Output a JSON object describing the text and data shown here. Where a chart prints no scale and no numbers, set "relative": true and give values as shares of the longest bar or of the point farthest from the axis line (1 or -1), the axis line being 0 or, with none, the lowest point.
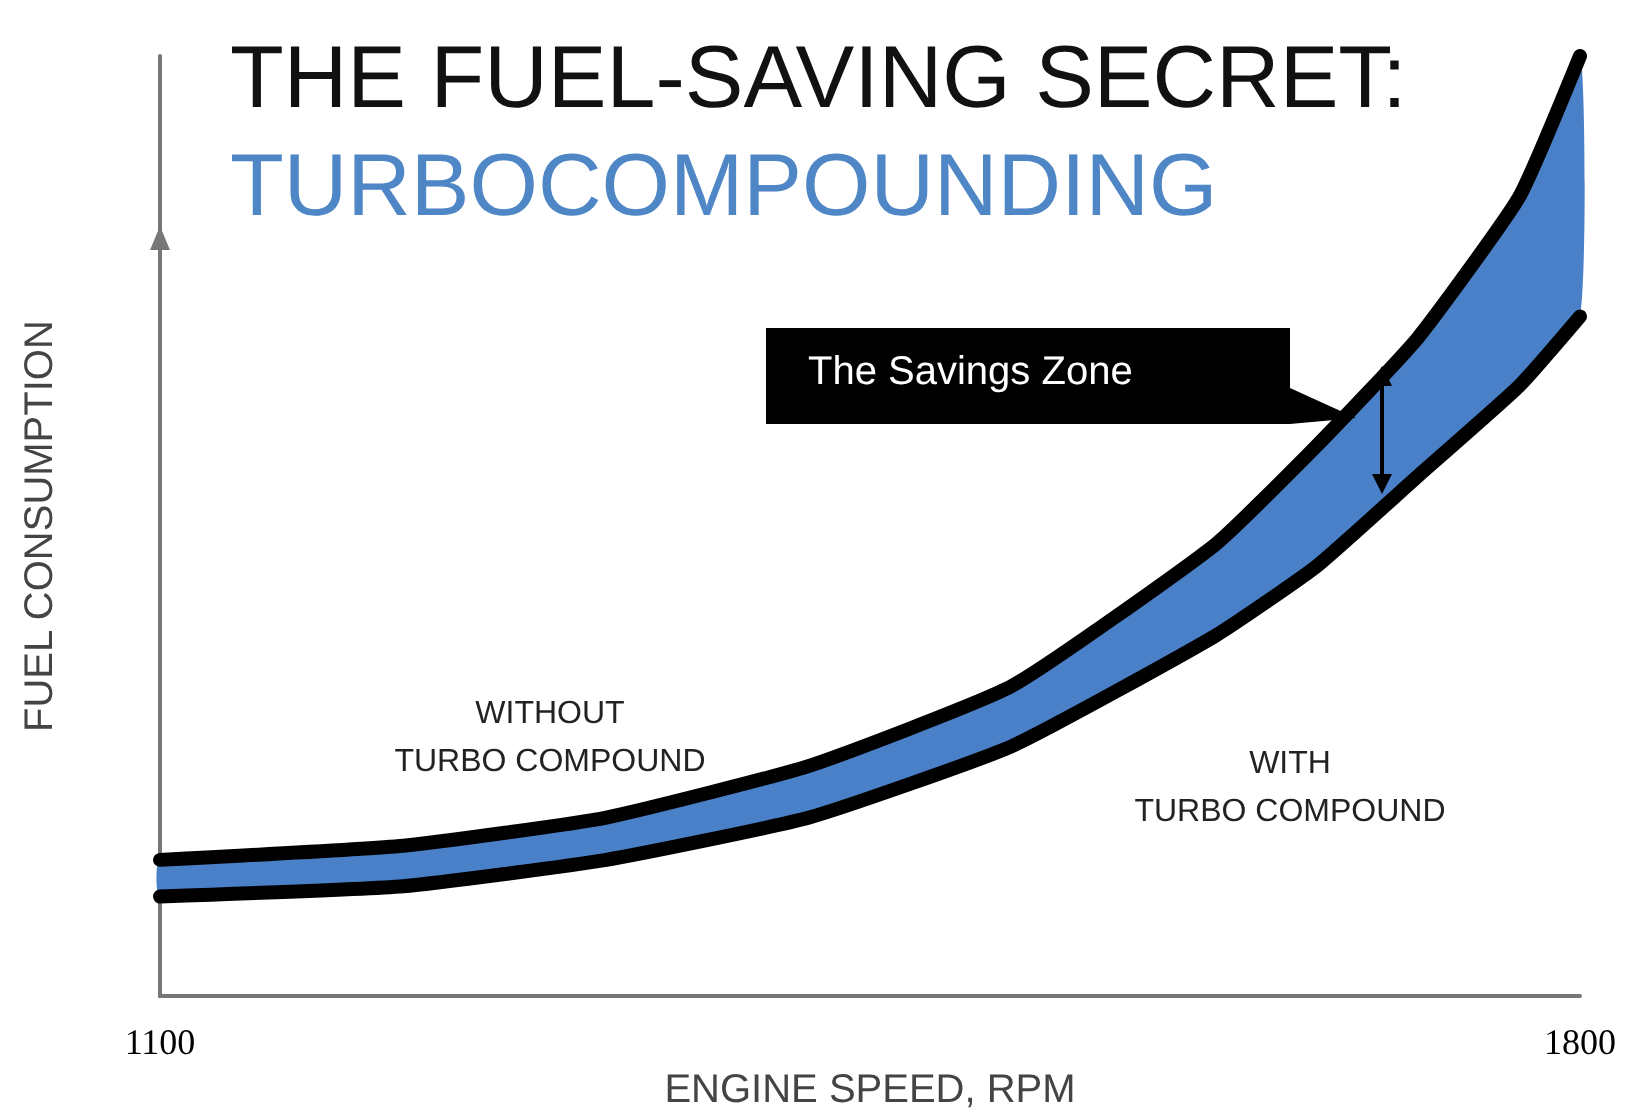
{
  "chart_data": {
    "type": "line",
    "title": "THE FUEL-SAVING SECRET:",
    "subtitle": "TURBOCOMPOUNDING",
    "xlabel": "ENGINE SPEED, RPM",
    "ylabel": "FUEL CONSUMPTION",
    "relative": true,
    "x": [
      1100,
      1220,
      1320,
      1420,
      1520,
      1620,
      1670,
      1720,
      1770,
      1800
    ],
    "xlim": [
      1100,
      1800
    ],
    "xticks": [
      1100,
      1800
    ],
    "tick_labels": "x",
    "grid": false,
    "legend": false,
    "marker": "none",
    "line_style": "solid",
    "series": [
      {
        "name": "WITHOUT\nTURBO COMPOUND",
        "color": "#000000",
        "values": [
          0.145,
          0.16,
          0.19,
          0.245,
          0.33,
          0.48,
          0.585,
          0.7,
          0.85,
          1
        ]
      },
      {
        "name": "WITH\nTURBO COMPOUND",
        "color": "#000000",
        "values": [
          0.106,
          0.117,
          0.145,
          0.19,
          0.266,
          0.383,
          0.457,
          0.553,
          0.649,
          0.723
        ],
        "lower": [
          0.106,
          0.117,
          0.145,
          0.19,
          0.266,
          0.383,
          0.457,
          0.553,
          0.649,
          0.723
        ],
        "upper": [
          0.145,
          0.16,
          0.19,
          0.245,
          0.33,
          0.48,
          0.585,
          0.7,
          0.85,
          1
        ]
      }
    ],
    "annotations": [
      "The Savings Zone"
    ]
  }
}
